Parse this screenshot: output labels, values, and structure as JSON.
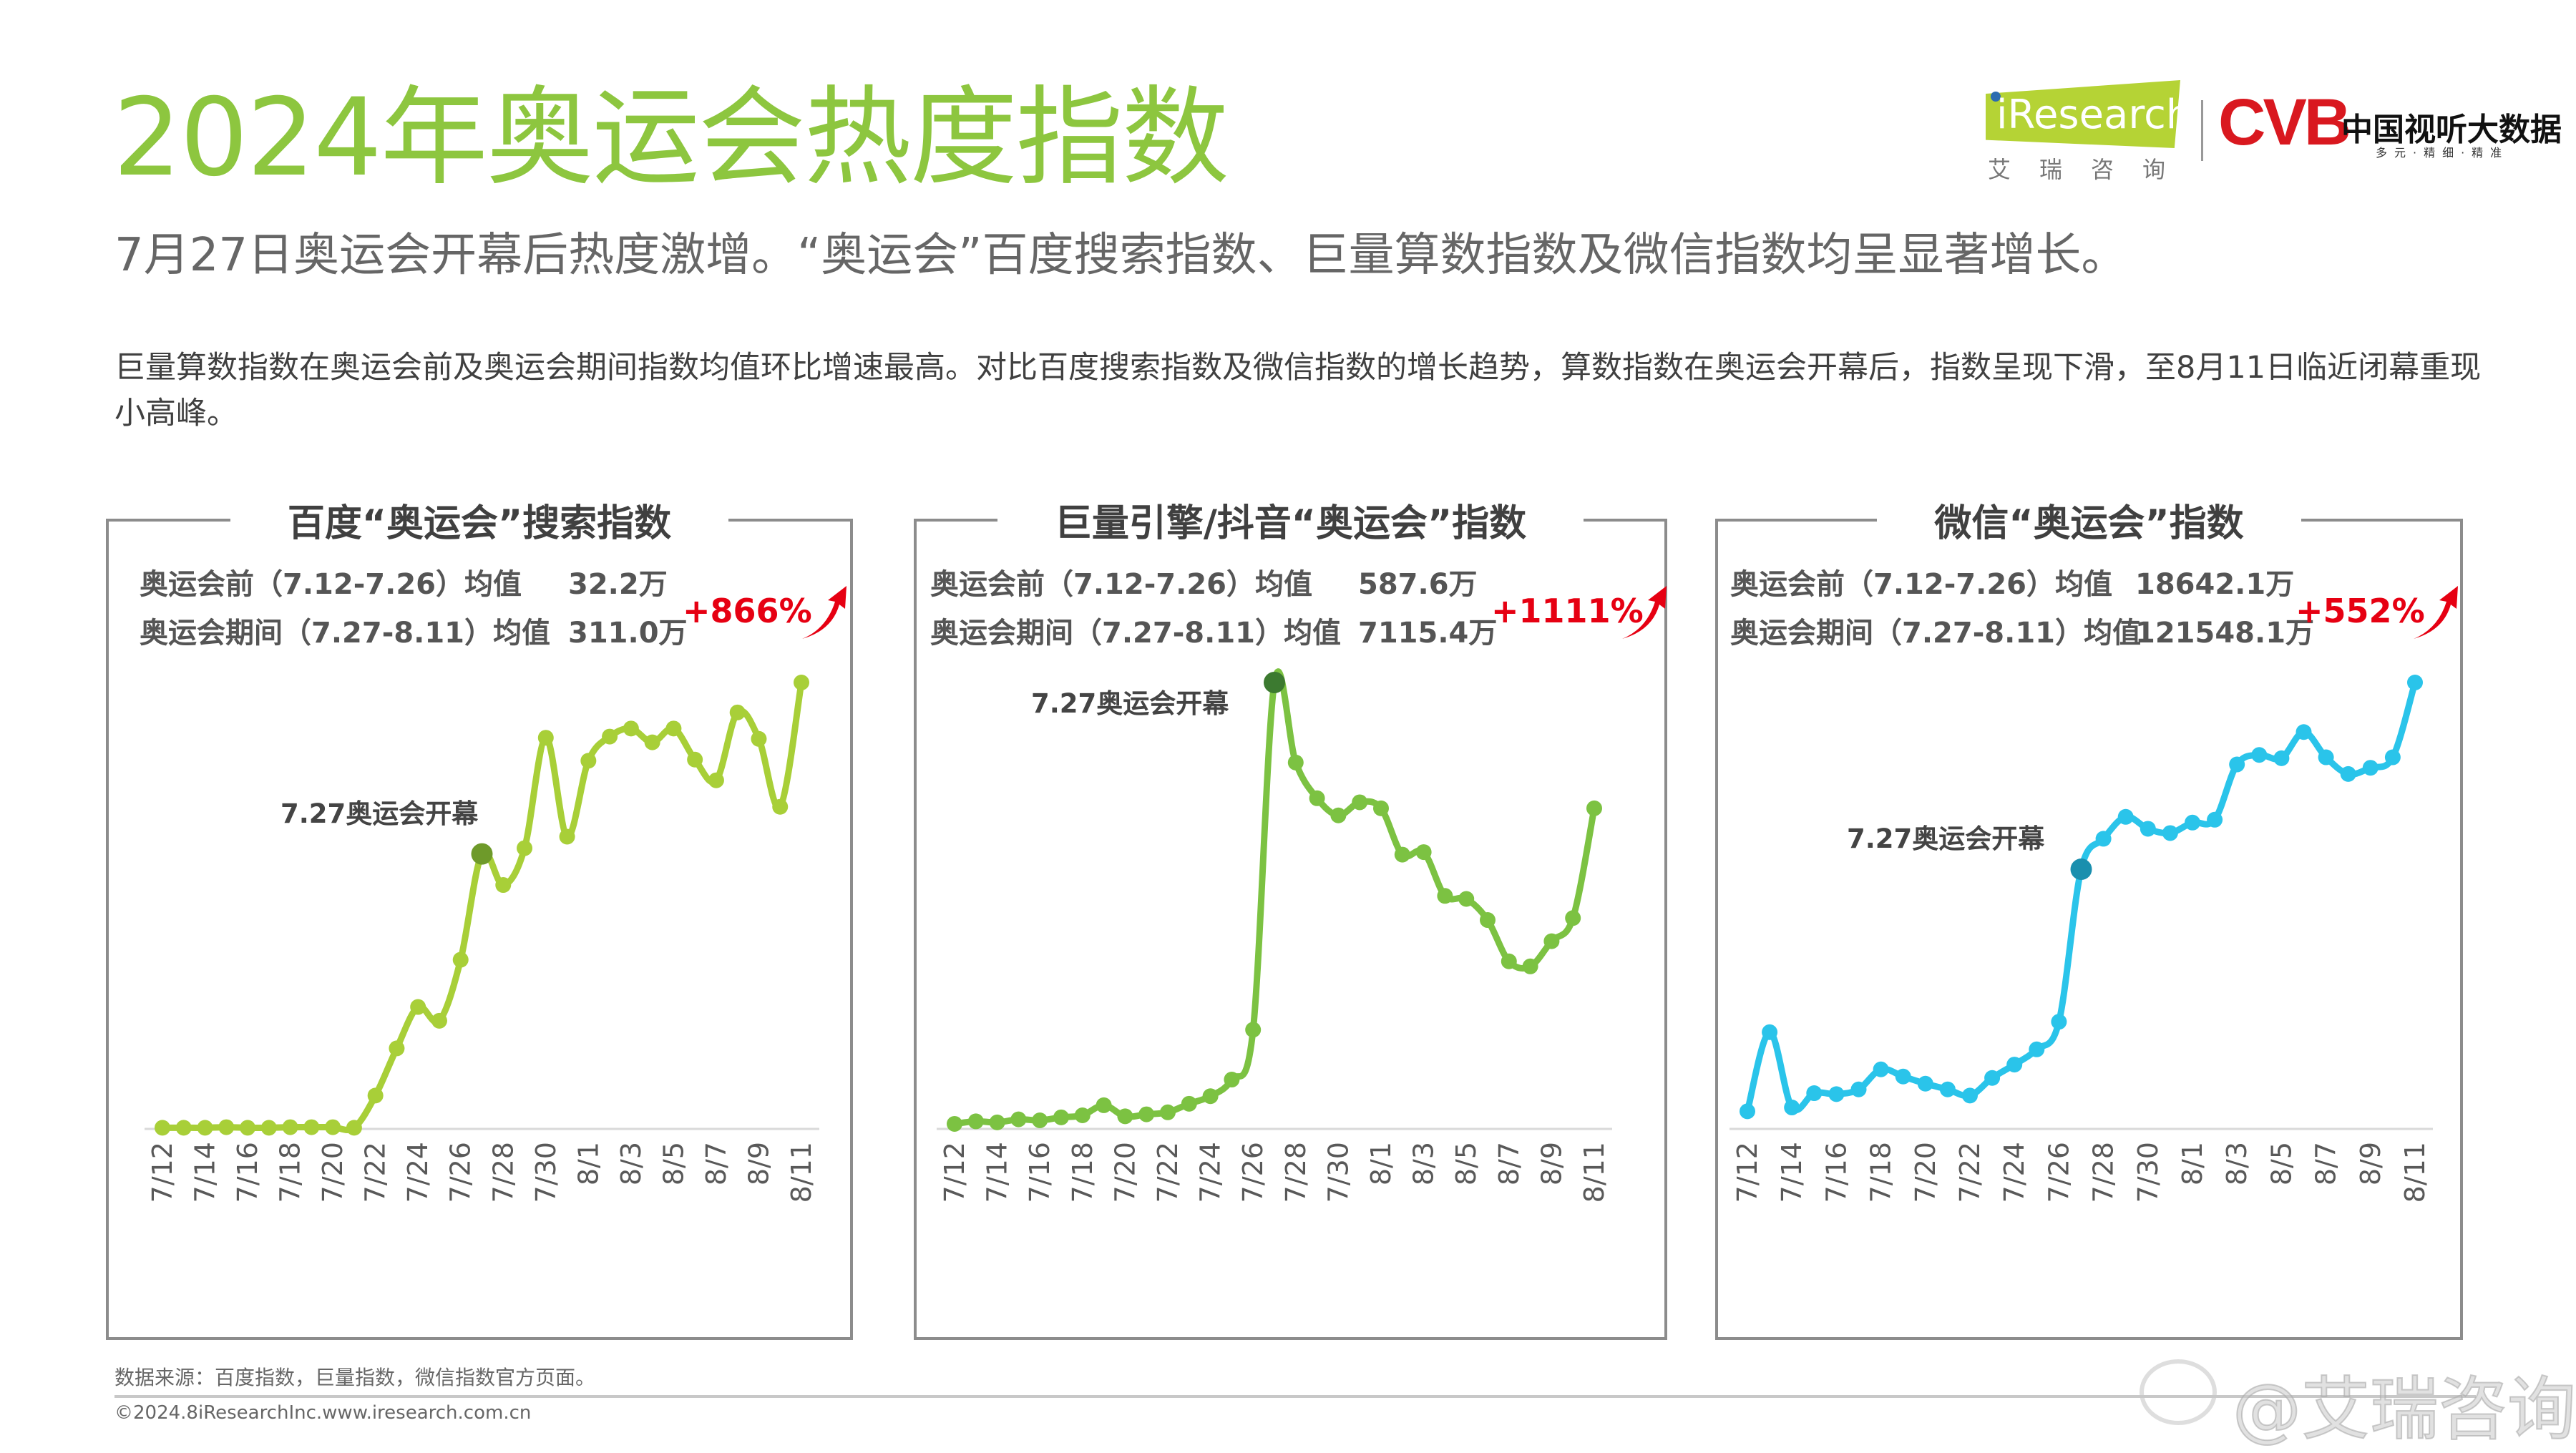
{
  "header": {
    "title": "2024年奥运会热度指数",
    "subtitle": "7月27日奥运会开幕后热度激增。“奥运会”百度搜索指数、巨量算数指数及微信指数均呈显著增长。",
    "paragraph": "巨量算数指数在奥运会前及奥运会期间指数均值环比增速最高。对比百度搜索指数及微信指数的增长趋势，算数指数在奥运会开幕后，指数呈现下滑，至8月11日临近闭幕重现小高峰。"
  },
  "logos": {
    "iresearch": "iResearch",
    "iresearch_cn": "艾瑞咨询",
    "cvb": "CVB",
    "cvb_cn": "中国视听大数据",
    "cvb_sub": "多元·精细·精准"
  },
  "footer": {
    "source": "数据来源：百度指数，巨量指数，微信指数官方页面。",
    "copyright": "©2024.8iResearchInc.www.iresearch.com.cn",
    "watermark": "@艾瑞咨询"
  },
  "chart_data": [
    {
      "type": "line",
      "title": "百度“奥运会”搜索指数",
      "color": "#a8cf38",
      "highlight_color": "#6e9a2a",
      "stats": [
        {
          "label": "奥运会前（7.12-7.26）均值",
          "value": "32.2万"
        },
        {
          "label": "奥运会期间（7.27-8.11）均值",
          "value": "311.0万"
        }
      ],
      "growth": "+866%",
      "annotation": {
        "text": "7.27奥运会开幕",
        "date": "7/27"
      },
      "categories": [
        "7/12",
        "7/13",
        "7/14",
        "7/15",
        "7/16",
        "7/17",
        "7/18",
        "7/19",
        "7/20",
        "7/21",
        "7/22",
        "7/23",
        "7/24",
        "7/25",
        "7/26",
        "7/27",
        "7/28",
        "7/29",
        "7/30",
        "7/31",
        "8/1",
        "8/2",
        "8/3",
        "8/4",
        "8/5",
        "8/6",
        "8/7",
        "8/8",
        "8/9",
        "8/10",
        "8/11"
      ],
      "tick_labels": [
        "7/12",
        "7/14",
        "7/16",
        "7/18",
        "7/20",
        "7/22",
        "7/24",
        "7/26",
        "7/28",
        "7/30",
        "8/1",
        "8/3",
        "8/5",
        "8/7",
        "8/9",
        "8/11"
      ],
      "values": [
        1,
        1,
        1,
        1.5,
        1,
        1,
        1.5,
        1.5,
        1.5,
        1,
        29,
        70,
        106,
        94,
        147,
        239,
        212,
        244,
        340,
        254,
        320,
        341,
        348,
        336,
        348,
        321,
        303,
        362,
        339,
        280,
        388
      ],
      "unit": "万",
      "grid": false
    },
    {
      "type": "line",
      "title": "巨量引擎/抖音“奥运会”指数",
      "color": "#7cc242",
      "highlight_color": "#3c7a30",
      "stats": [
        {
          "label": "奥运会前（7.12-7.26）均值",
          "value": "587.6万"
        },
        {
          "label": "奥运会期间（7.27-8.11）均值",
          "value": "7115.4万"
        }
      ],
      "growth": "+1111%",
      "annotation": {
        "text": "7.27奥运会开幕",
        "date": "7/27"
      },
      "categories": [
        "7/12",
        "7/13",
        "7/14",
        "7/15",
        "7/16",
        "7/17",
        "7/18",
        "7/19",
        "7/20",
        "7/21",
        "7/22",
        "7/23",
        "7/24",
        "7/25",
        "7/26",
        "7/27",
        "7/28",
        "7/29",
        "7/30",
        "7/31",
        "8/1",
        "8/2",
        "8/3",
        "8/4",
        "8/5",
        "8/6",
        "8/7",
        "8/8",
        "8/9",
        "8/10",
        "8/11"
      ],
      "tick_labels": [
        "7/12",
        "7/14",
        "7/16",
        "7/18",
        "7/20",
        "7/22",
        "7/24",
        "7/26",
        "7/28",
        "7/30",
        "8/1",
        "8/3",
        "8/5",
        "8/7",
        "8/9",
        "8/11"
      ],
      "values": [
        131,
        197,
        170,
        249,
        223,
        301,
        354,
        616,
        328,
        380,
        432,
        655,
        852,
        1284,
        2581,
        11620,
        9537,
        8607,
        8161,
        8502,
        8345,
        7140,
        7205,
        6065,
        5987,
        5437,
        4362,
        4231,
        4886,
        5489,
        8345
      ],
      "unit": "万",
      "grid": false
    },
    {
      "type": "line",
      "title": "微信“奥运会”指数",
      "color": "#2ac4ea",
      "highlight_color": "#1a8fae",
      "stats": [
        {
          "label": "奥运会前（7.12-7.26）均值",
          "value": "18642.1万"
        },
        {
          "label": "奥运会期间（7.27-8.11）均值",
          "value": "121548.1万"
        }
      ],
      "growth": "+552%",
      "annotation": {
        "text": "7.27奥运会开幕",
        "date": "7/27"
      },
      "categories": [
        "7/12",
        "7/13",
        "7/14",
        "7/15",
        "7/16",
        "7/17",
        "7/18",
        "7/19",
        "7/20",
        "7/21",
        "7/22",
        "7/23",
        "7/24",
        "7/25",
        "7/26",
        "7/27",
        "7/28",
        "7/29",
        "7/30",
        "7/31",
        "8/1",
        "8/2",
        "8/3",
        "8/4",
        "8/5",
        "8/6",
        "8/7",
        "8/8",
        "8/9",
        "8/10",
        "8/11"
      ],
      "tick_labels": [
        "7/12",
        "7/14",
        "7/16",
        "7/18",
        "7/20",
        "7/22",
        "7/24",
        "7/26",
        "7/28",
        "7/30",
        "8/1",
        "8/3",
        "8/5",
        "8/7",
        "8/9",
        "8/11"
      ],
      "values": [
        6290,
        34510,
        7650,
        12750,
        12410,
        14110,
        21250,
        18700,
        16150,
        14110,
        11900,
        18190,
        22950,
        28390,
        38250,
        92650,
        103530,
        111350,
        107100,
        105570,
        109310,
        110330,
        130050,
        133450,
        132260,
        141610,
        132600,
        126650,
        128860,
        132600,
        159290
      ],
      "unit": "万",
      "grid": false
    }
  ]
}
